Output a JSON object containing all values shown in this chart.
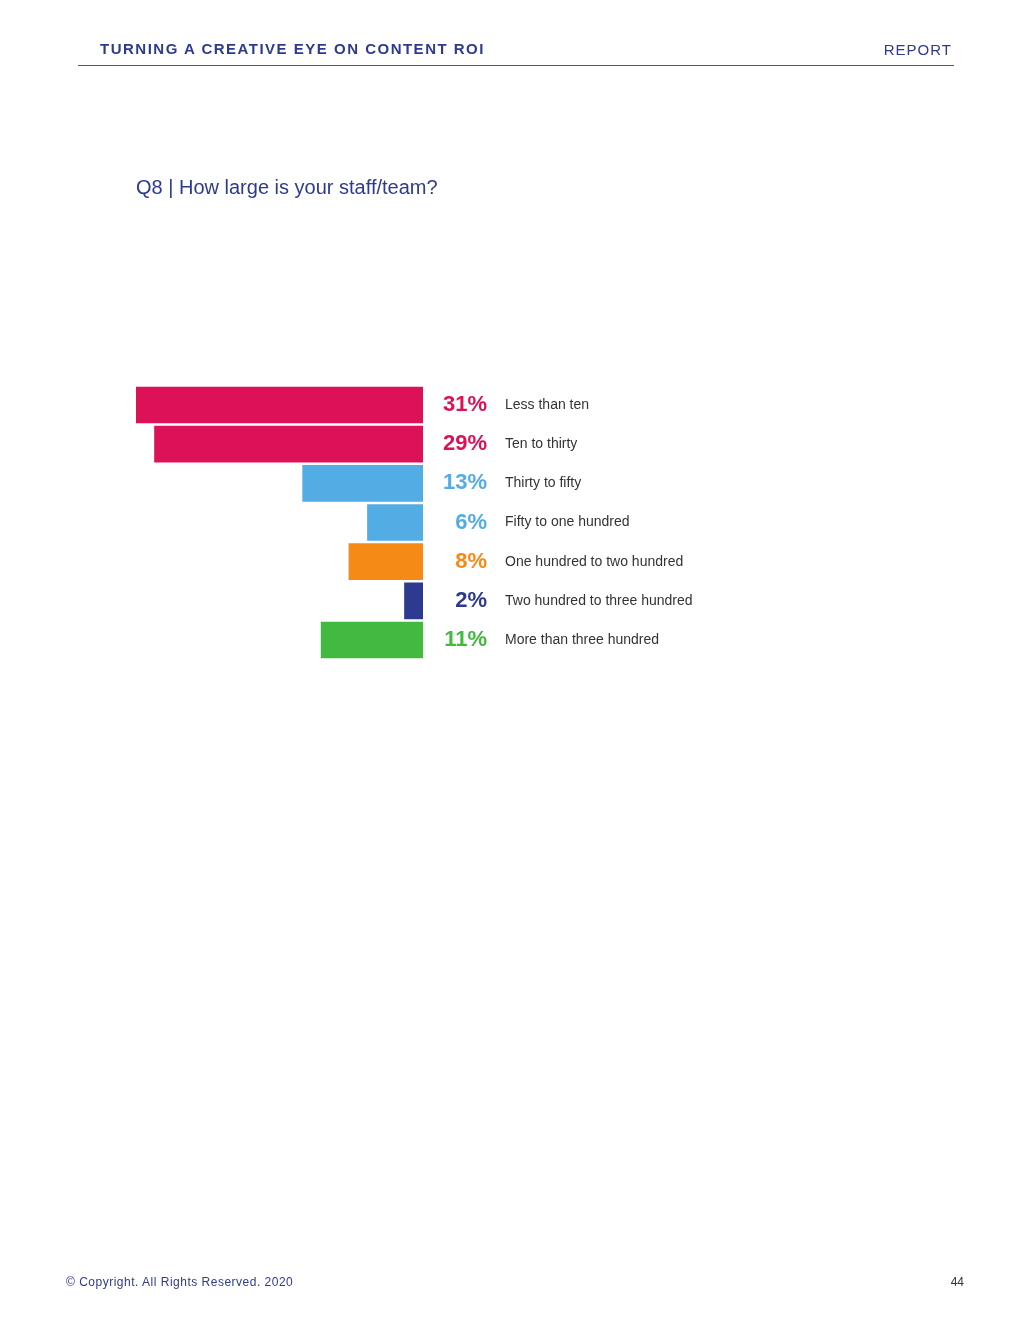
{
  "chart_data": {
    "type": "bar",
    "orientation": "horizontal",
    "title": "Q8 | How large is your staff/team?",
    "categories": [
      "Less than ten",
      "Ten to thirty",
      "Thirty to fifty",
      "Fifty to one hundred",
      "One hundred to two hundred",
      "Two hundred to three hundred",
      "More than three hundred"
    ],
    "values": [
      31,
      29,
      13,
      6,
      8,
      2,
      11
    ],
    "colors": [
      "#dc1158",
      "#dc1158",
      "#52ade4",
      "#52ade4",
      "#f68a16",
      "#2e3a8f",
      "#42b93f"
    ],
    "value_labels": [
      "31%",
      "29%",
      "13%",
      "6%",
      "8%",
      "2%",
      "11%"
    ],
    "annotations": [
      "TURNING A CREATIVE EYE ON CONTENT ROI",
      "REPORT",
      "© Copyright. All Rights Reserved. 2020",
      "44"
    ],
    "legend": false
  }
}
